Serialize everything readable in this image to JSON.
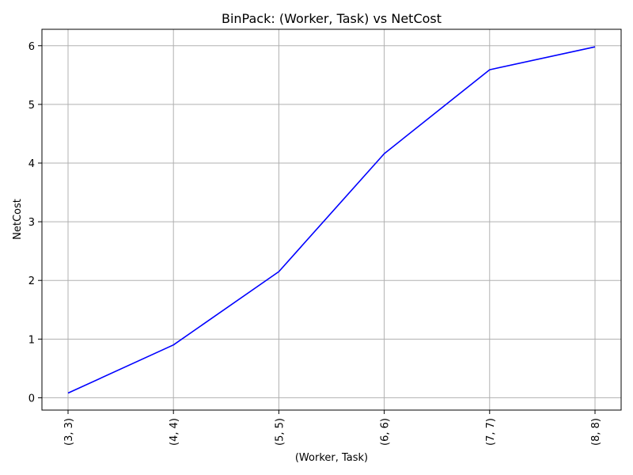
{
  "chart_data": {
    "type": "line",
    "title": "BinPack: (Worker, Task) vs NetCost",
    "xlabel": "(Worker, Task)",
    "ylabel": "NetCost",
    "categories": [
      "(3, 3)",
      "(4, 4)",
      "(5, 5)",
      "(6, 6)",
      "(7, 7)",
      "(8, 8)"
    ],
    "series": [
      {
        "values": [
          0.08,
          0.9,
          2.15,
          4.16,
          5.59,
          5.98
        ],
        "color": "#0000ff"
      }
    ],
    "ylim": [
      -0.21,
      6.28
    ],
    "yticks": [
      0,
      1,
      2,
      3,
      4,
      5,
      6
    ],
    "ytick_labels": [
      "0",
      "1",
      "2",
      "3",
      "4",
      "5",
      "6"
    ],
    "grid": true
  }
}
